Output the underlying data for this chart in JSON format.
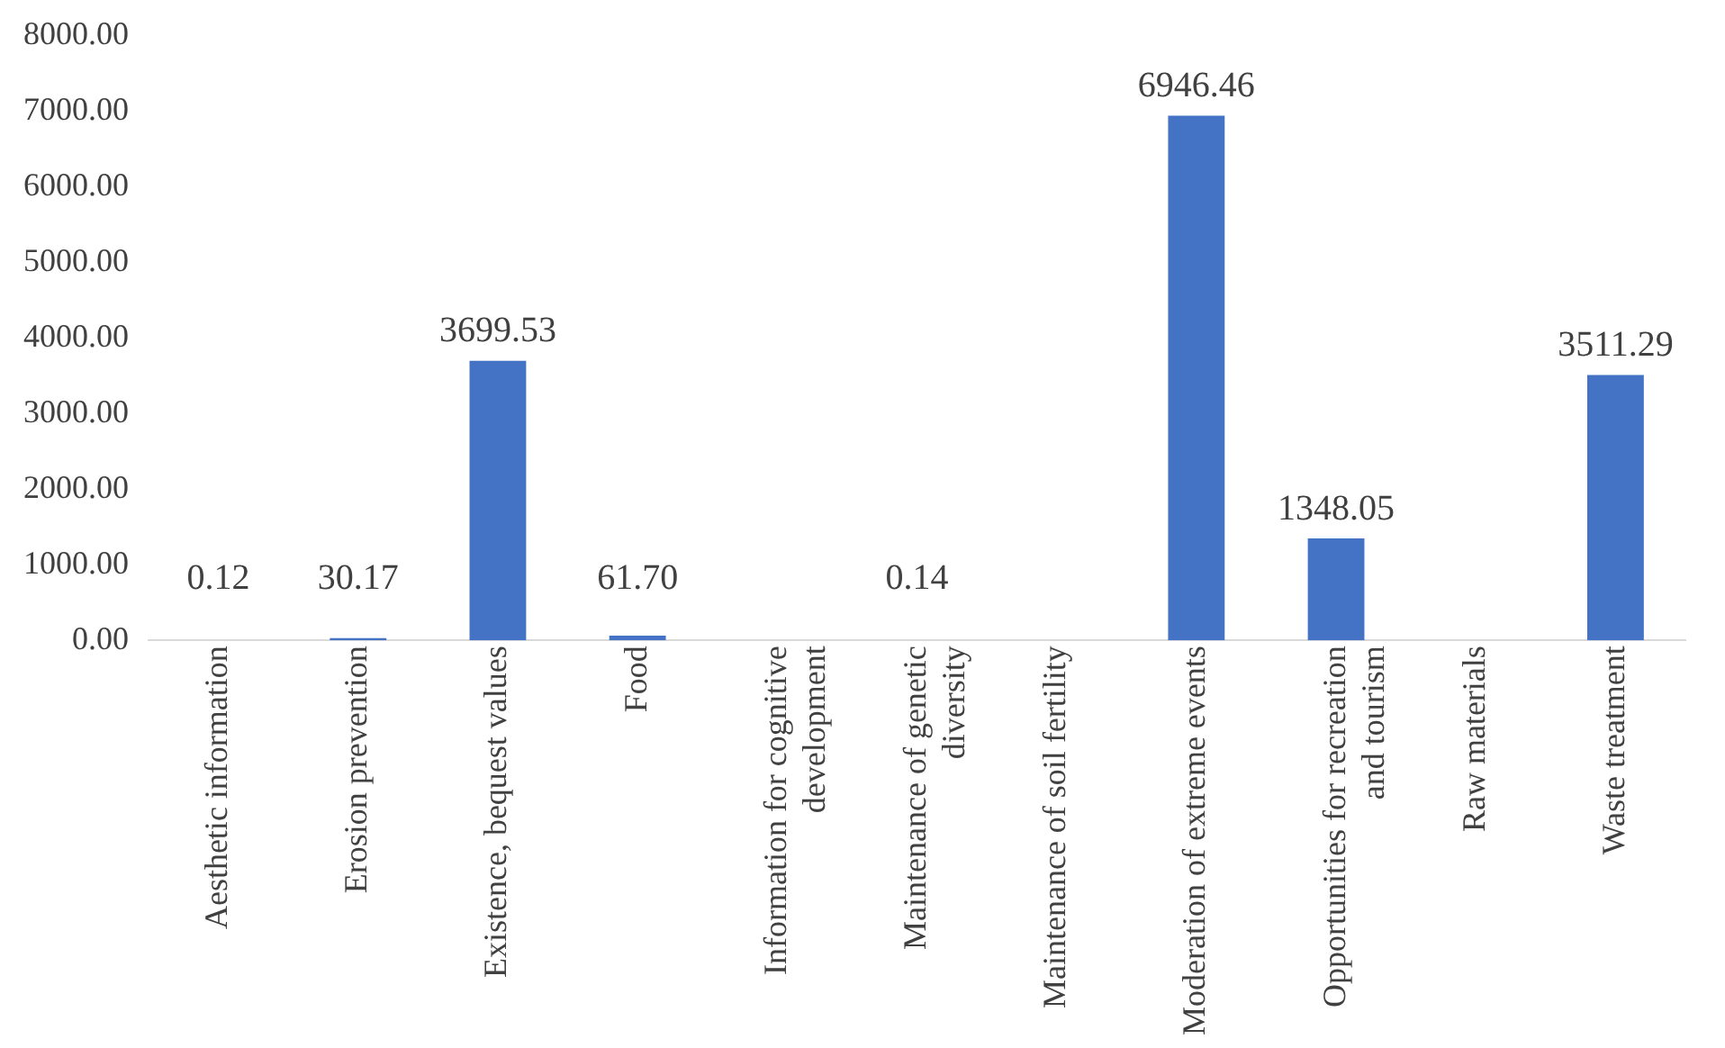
{
  "chart_data": {
    "type": "bar",
    "categories": [
      "Aesthetic information",
      "Erosion prevention",
      "Existence, bequest values",
      "Food",
      "Information for cognitive development",
      "Maintenance of genetic diversity",
      "Maintenance of soil fertility",
      "Moderation of extreme events",
      "Opportunities for recreation and tourism",
      "Raw materials",
      "Waste treatment"
    ],
    "values": [
      0.12,
      30.17,
      3699.53,
      61.7,
      null,
      0.14,
      null,
      6946.46,
      1348.05,
      null,
      3511.29
    ],
    "value_labels": [
      "0.12",
      "30.17",
      "3699.53",
      "61.70",
      null,
      "0.14",
      null,
      "6946.46",
      "1348.05",
      null,
      "3511.29"
    ],
    "color": "#4472c4",
    "ylim": [
      0,
      8000
    ],
    "yticks": [
      {
        "value": 0,
        "label": "0.00"
      },
      {
        "value": 1000,
        "label": "1000.00"
      },
      {
        "value": 2000,
        "label": "2000.00"
      },
      {
        "value": 3000,
        "label": "3000.00"
      },
      {
        "value": 4000,
        "label": "4000.00"
      },
      {
        "value": 5000,
        "label": "5000.00"
      },
      {
        "value": 6000,
        "label": "6000.00"
      },
      {
        "value": 7000,
        "label": "7000.00"
      },
      {
        "value": 8000,
        "label": "8000.00"
      }
    ],
    "grid": false,
    "legend": false
  }
}
